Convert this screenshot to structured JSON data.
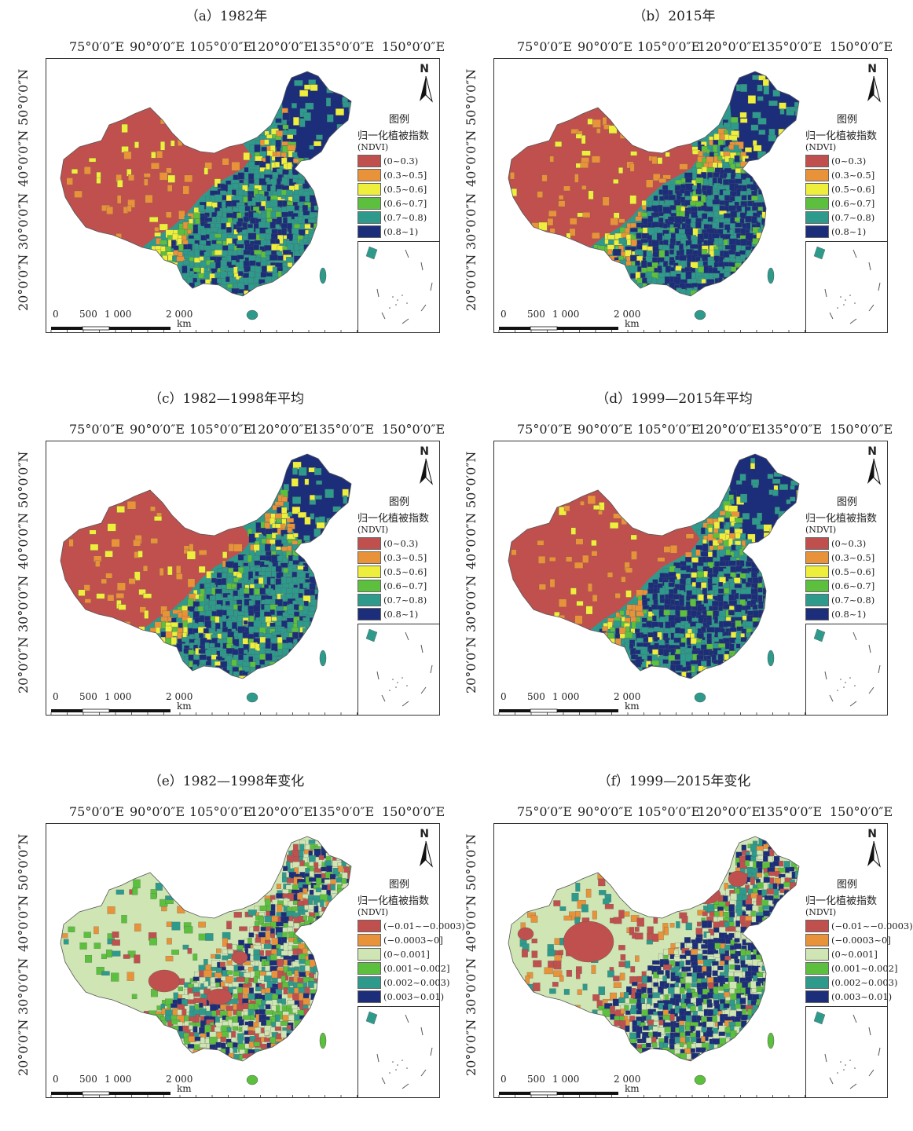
{
  "colors": {
    "ndvi": [
      "#c0504d",
      "#e8923a",
      "#eeee3c",
      "#5cbf3e",
      "#2e9a8c",
      "#1c2e7a"
    ],
    "change": [
      "#c0504d",
      "#e8923a",
      "#cfe6b4",
      "#5cbf3e",
      "#2e9a8c",
      "#1c2e7a"
    ]
  },
  "map_text": {
    "longitudes": [
      "75°0′0″E",
      "90°0′0″E",
      "105°0′0″E",
      "120°0′0″E",
      "135°0′0″E",
      "150°0′0″E"
    ],
    "latitudes": [
      "50°0′0″N",
      "40°0′0″N",
      "30°0′0″N",
      "20°0′0″N"
    ],
    "north": "N",
    "scale": {
      "labels": [
        "0",
        "500",
        "1 000",
        "2 000"
      ],
      "unit": "km"
    },
    "legend_title": "图例",
    "legend_subtitle": "归一化植被指数",
    "legend_unit": "(NDVI)",
    "ndvi_classes": [
      "(0~0.3)",
      "(0.3~0.5]",
      "(0.5~0.6]",
      "(0.6~0.7]",
      "(0.7~0.8)",
      "(0.8~1)"
    ],
    "change_classes": [
      "(−0.01~−0.0003)",
      "(−0.0003~0]",
      "(0~0.001]",
      "(0.001~0.002]",
      "(0.002~0.003)",
      "(0.003~0.01)"
    ]
  },
  "panels": [
    {
      "title": "（a）1982年",
      "scheme": "ndvi"
    },
    {
      "title": "（b）2015年",
      "scheme": "ndvi"
    },
    {
      "title": "（c）1982—1998年平均",
      "scheme": "ndvi"
    },
    {
      "title": "（d）1999—2015年平均",
      "scheme": "ndvi"
    },
    {
      "title": "（e）1982—1998年变化",
      "scheme": "change"
    },
    {
      "title": "（f）1999—2015年变化",
      "scheme": "change"
    }
  ]
}
